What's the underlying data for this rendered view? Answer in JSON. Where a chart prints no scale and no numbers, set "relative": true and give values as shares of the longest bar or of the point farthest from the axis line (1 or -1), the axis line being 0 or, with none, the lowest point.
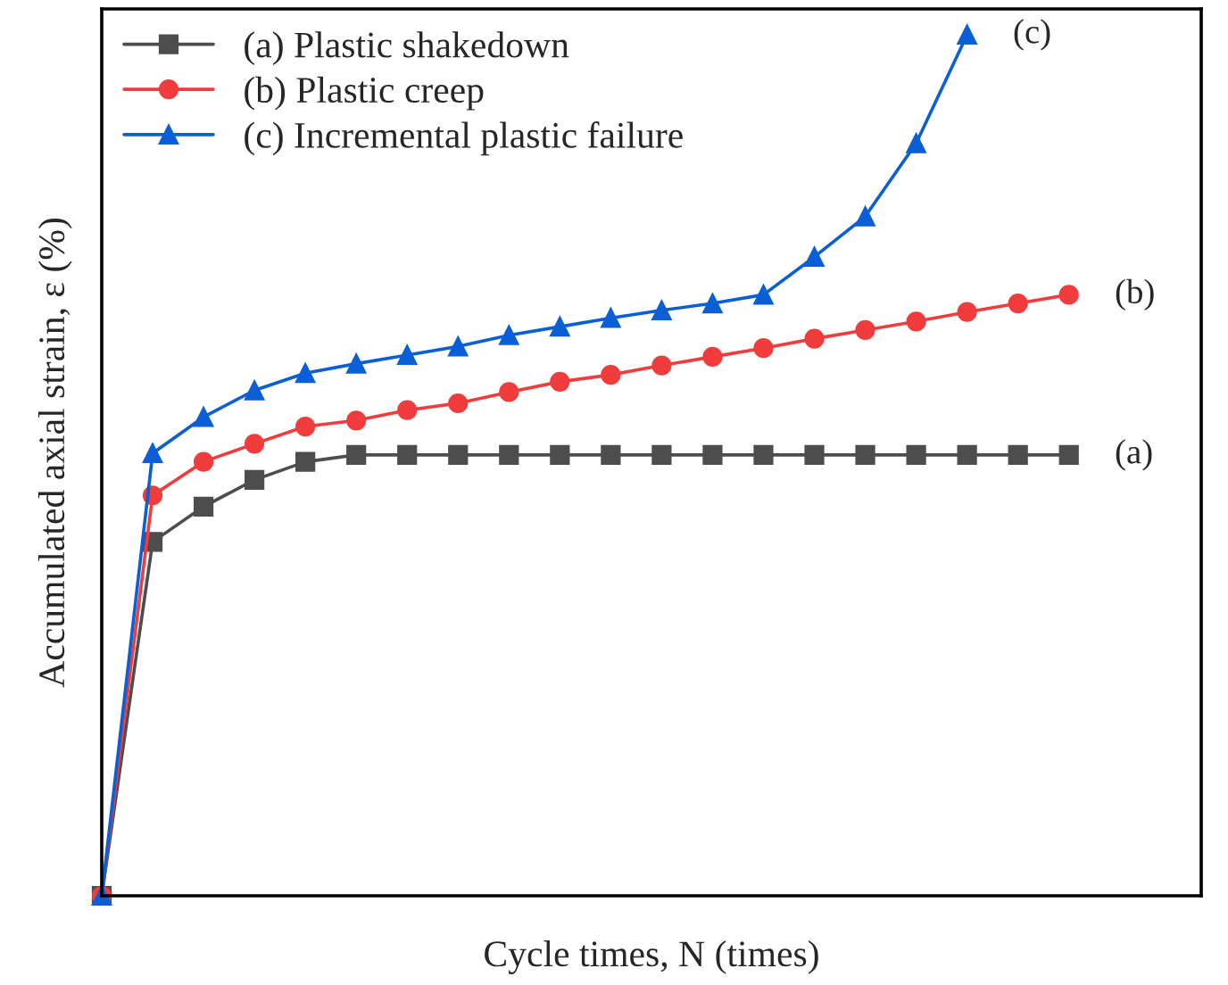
{
  "chart_data": {
    "type": "line",
    "relative": true,
    "xlabel": "Cycle times, N (times)",
    "ylabel": "Accumulated axial strain, ε (%)",
    "categories": [
      null,
      null,
      null,
      null,
      null,
      null,
      null,
      null,
      null,
      null,
      null,
      null,
      null,
      null,
      null,
      null,
      null,
      null,
      null,
      null
    ],
    "series": [
      {
        "name": "(a) Plastic shakedown",
        "color": "#4d4d4d",
        "marker": "square",
        "values": [
          0,
          0.411,
          0.452,
          0.483,
          0.504,
          0.512,
          0.512,
          0.512,
          0.512,
          0.512,
          0.512,
          0.512,
          0.512,
          0.512,
          0.512,
          0.512,
          0.512,
          0.512,
          0.512,
          0.512
        ]
      },
      {
        "name": "(b) Plastic creep",
        "color": "#f03c3c",
        "marker": "circle",
        "values": [
          0,
          0.465,
          0.504,
          0.525,
          0.545,
          0.552,
          0.564,
          0.572,
          0.585,
          0.597,
          0.605,
          0.616,
          0.626,
          0.636,
          0.647,
          0.657,
          0.667,
          0.678,
          0.688,
          0.698
        ]
      },
      {
        "name": "(c) Incremental plastic failure",
        "color": "#0a5fd6",
        "marker": "triangle",
        "values": [
          0,
          0.514,
          0.556,
          0.587,
          0.607,
          0.618,
          0.628,
          0.638,
          0.651,
          0.661,
          0.671,
          0.68,
          0.688,
          0.698,
          0.742,
          0.789,
          0.874,
          1,
          null,
          null
        ]
      }
    ],
    "annotations": [
      "(a)",
      "(b)",
      "(c)"
    ],
    "legend": "top left"
  }
}
